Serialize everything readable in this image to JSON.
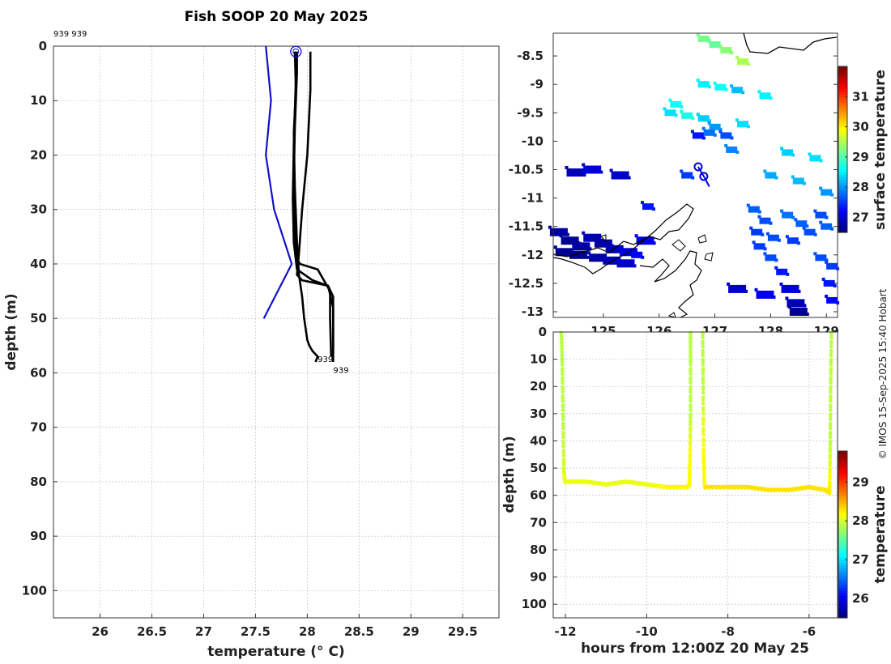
{
  "title": "Fish SOOP 20 May 2025",
  "credit": "© IMOS 15-Sep-2025 15:40 Hobart",
  "colors": {
    "profile": "#000000",
    "climatology": "#1010cc",
    "grid": "#bbbbbb",
    "track": "#0000dd",
    "coast": "#000000"
  },
  "chart_data": [
    {
      "id": "profile",
      "type": "line",
      "title": "Fish SOOP 20 May 2025",
      "xlabel": "temperature (° C)",
      "ylabel": "depth (m)",
      "xlim": [
        25.55,
        29.85
      ],
      "ylim": [
        105,
        0
      ],
      "xticks": [
        "26",
        "26.5",
        "27",
        "27.5",
        "28",
        "28.5",
        "29",
        "29.5"
      ],
      "xtick_values": [
        26,
        26.5,
        27,
        27.5,
        28,
        28.5,
        29,
        29.5
      ],
      "yticks": [
        "0",
        "10",
        "20",
        "30",
        "40",
        "50",
        "60",
        "70",
        "80",
        "90",
        "100"
      ],
      "ytick_values": [
        0,
        10,
        20,
        30,
        40,
        50,
        60,
        70,
        80,
        90,
        100
      ],
      "header_label": "939 939",
      "end_labels": [
        {
          "text": "939",
          "x": 28.1,
          "y": 58
        },
        {
          "text": "939",
          "x": 28.25,
          "y": 60
        }
      ],
      "start_marker": {
        "x": 27.89,
        "y": 1
      },
      "series": [
        {
          "name": "climatology",
          "x": [
            27.6,
            27.65,
            27.6,
            27.68,
            27.85,
            27.58
          ],
          "y": [
            0,
            10,
            20,
            30,
            40,
            50
          ]
        },
        {
          "name": "cast 1",
          "x": [
            27.9,
            27.9,
            27.88,
            27.87,
            27.88,
            27.9,
            27.93,
            28.1,
            28.22,
            28.22,
            28.23
          ],
          "y": [
            1,
            5,
            15,
            25,
            35,
            39,
            40,
            41,
            45,
            50,
            57
          ]
        },
        {
          "name": "cast 2",
          "x": [
            27.89,
            27.89,
            27.87,
            27.86,
            27.87,
            27.9,
            28.05,
            28.2,
            28.25,
            28.25,
            28.25
          ],
          "y": [
            1,
            6,
            18,
            28,
            36,
            41,
            43,
            44,
            46,
            52,
            58
          ]
        },
        {
          "name": "cast 3",
          "x": [
            28.03,
            28.03,
            28.0,
            27.95,
            27.92,
            27.9,
            27.95,
            28.2,
            28.25,
            28.25
          ],
          "y": [
            1,
            8,
            20,
            30,
            38,
            42,
            43,
            44,
            48,
            56
          ]
        },
        {
          "name": "cast 4",
          "x": [
            27.88,
            27.89,
            27.87,
            27.88,
            27.9,
            27.92,
            27.95,
            27.97,
            28.0,
            28.02,
            28.05,
            28.1,
            28.08
          ],
          "y": [
            1,
            8,
            16,
            26,
            36,
            42,
            46,
            50,
            54,
            55,
            56,
            57,
            58
          ]
        }
      ]
    },
    {
      "id": "map",
      "type": "heatmap",
      "xlim": [
        124.1,
        129.2
      ],
      "ylim": [
        -13.1,
        -8.1
      ],
      "xticks": [
        "125",
        "126",
        "127",
        "128",
        "129"
      ],
      "xtick_values": [
        125,
        126,
        127,
        128,
        129
      ],
      "yticks": [
        "-8.5",
        "-9",
        "-9.5",
        "-10",
        "-10.5",
        "-11",
        "-11.5",
        "-12",
        "-12.5",
        "-13"
      ],
      "ytick_values": [
        -8.5,
        -9,
        -9.5,
        -10,
        -10.5,
        -11,
        -11.5,
        -12,
        -12.5,
        -13
      ],
      "colorbar_label": "surface temperature",
      "colorbar_ticks": [
        "27",
        "28",
        "29",
        "30",
        "31"
      ],
      "colorbar_tick_values": [
        27,
        28,
        29,
        30,
        31
      ],
      "colorbar_range": [
        26.5,
        32
      ],
      "track": {
        "lon": [
          126.7,
          126.82,
          126.9
        ],
        "lat": [
          -10.45,
          -10.65,
          -10.8
        ]
      },
      "track_markers": {
        "lon": [
          126.7,
          126.8
        ],
        "lat": [
          -10.45,
          -10.62
        ]
      },
      "sst_cells": [
        {
          "lon": 126.8,
          "lat": -8.2,
          "t": 29.2
        },
        {
          "lon": 127.0,
          "lat": -8.3,
          "t": 29.1
        },
        {
          "lon": 127.2,
          "lat": -8.4,
          "t": 29.3
        },
        {
          "lon": 127.5,
          "lat": -8.6,
          "t": 29.5
        },
        {
          "lon": 126.8,
          "lat": -9.0,
          "t": 28.5
        },
        {
          "lon": 127.1,
          "lat": -9.05,
          "t": 28.6
        },
        {
          "lon": 127.4,
          "lat": -9.1,
          "t": 28.2
        },
        {
          "lon": 127.9,
          "lat": -9.2,
          "t": 28.5
        },
        {
          "lon": 126.3,
          "lat": -9.35,
          "t": 28.6
        },
        {
          "lon": 126.2,
          "lat": -9.5,
          "t": 28.4
        },
        {
          "lon": 126.5,
          "lat": -9.55,
          "t": 28.7
        },
        {
          "lon": 126.8,
          "lat": -9.6,
          "t": 28.3
        },
        {
          "lon": 127.0,
          "lat": -9.75,
          "t": 28.0
        },
        {
          "lon": 126.9,
          "lat": -9.85,
          "t": 27.8
        },
        {
          "lon": 127.2,
          "lat": -9.9,
          "t": 27.6
        },
        {
          "lon": 127.5,
          "lat": -9.7,
          "t": 28.4
        },
        {
          "lon": 126.7,
          "lat": -9.9,
          "t": 27.3
        },
        {
          "lon": 127.3,
          "lat": -10.15,
          "t": 27.9
        },
        {
          "lon": 128.3,
          "lat": -10.2,
          "t": 28.3
        },
        {
          "lon": 128.8,
          "lat": -10.3,
          "t": 28.4
        },
        {
          "lon": 128.0,
          "lat": -10.6,
          "t": 28.1
        },
        {
          "lon": 128.5,
          "lat": -10.7,
          "t": 28.2
        },
        {
          "lon": 129.0,
          "lat": -10.9,
          "t": 28.0
        },
        {
          "lon": 124.8,
          "lat": -10.5,
          "t": 27.0
        },
        {
          "lon": 125.3,
          "lat": -10.6,
          "t": 26.9
        },
        {
          "lon": 124.5,
          "lat": -10.55,
          "t": 26.8
        },
        {
          "lon": 126.5,
          "lat": -10.6,
          "t": 27.5
        },
        {
          "lon": 125.8,
          "lat": -11.15,
          "t": 27.3
        },
        {
          "lon": 124.2,
          "lat": -11.6,
          "t": 26.7
        },
        {
          "lon": 124.4,
          "lat": -11.75,
          "t": 26.6
        },
        {
          "lon": 124.6,
          "lat": -11.85,
          "t": 26.7
        },
        {
          "lon": 124.8,
          "lat": -11.7,
          "t": 26.8
        },
        {
          "lon": 125.0,
          "lat": -11.8,
          "t": 26.7
        },
        {
          "lon": 125.2,
          "lat": -11.9,
          "t": 26.8
        },
        {
          "lon": 125.45,
          "lat": -11.95,
          "t": 27.0
        },
        {
          "lon": 125.6,
          "lat": -12.0,
          "t": 27.2
        },
        {
          "lon": 124.3,
          "lat": -11.95,
          "t": 26.6
        },
        {
          "lon": 124.55,
          "lat": -12.0,
          "t": 26.6
        },
        {
          "lon": 124.9,
          "lat": -12.05,
          "t": 26.7
        },
        {
          "lon": 125.15,
          "lat": -12.1,
          "t": 26.8
        },
        {
          "lon": 125.4,
          "lat": -12.15,
          "t": 26.9
        },
        {
          "lon": 125.75,
          "lat": -11.75,
          "t": 27.1
        },
        {
          "lon": 127.7,
          "lat": -11.2,
          "t": 27.7
        },
        {
          "lon": 127.9,
          "lat": -11.4,
          "t": 27.6
        },
        {
          "lon": 127.75,
          "lat": -11.6,
          "t": 27.5
        },
        {
          "lon": 128.05,
          "lat": -11.7,
          "t": 27.6
        },
        {
          "lon": 127.8,
          "lat": -11.85,
          "t": 27.5
        },
        {
          "lon": 128.0,
          "lat": -12.05,
          "t": 27.6
        },
        {
          "lon": 128.3,
          "lat": -11.3,
          "t": 27.8
        },
        {
          "lon": 128.55,
          "lat": -11.45,
          "t": 27.7
        },
        {
          "lon": 128.7,
          "lat": -11.6,
          "t": 27.6
        },
        {
          "lon": 128.4,
          "lat": -11.75,
          "t": 27.5
        },
        {
          "lon": 128.2,
          "lat": -12.3,
          "t": 27.3
        },
        {
          "lon": 128.35,
          "lat": -12.6,
          "t": 27.0
        },
        {
          "lon": 128.45,
          "lat": -12.85,
          "t": 26.8
        },
        {
          "lon": 128.5,
          "lat": -13.0,
          "t": 26.6
        },
        {
          "lon": 128.9,
          "lat": -11.3,
          "t": 27.6
        },
        {
          "lon": 129.0,
          "lat": -11.5,
          "t": 27.7
        },
        {
          "lon": 128.9,
          "lat": -12.05,
          "t": 27.6
        },
        {
          "lon": 129.1,
          "lat": -12.2,
          "t": 27.5
        },
        {
          "lon": 129.05,
          "lat": -12.5,
          "t": 27.3
        },
        {
          "lon": 129.1,
          "lat": -12.8,
          "t": 27.2
        },
        {
          "lon": 127.4,
          "lat": -12.6,
          "t": 26.9
        },
        {
          "lon": 127.9,
          "lat": -12.7,
          "t": 27.1
        }
      ]
    },
    {
      "id": "section",
      "type": "scatter",
      "xlabel": "hours from 12:00Z 20 May 25",
      "ylabel": "depth (m)",
      "xlim": [
        -12.3,
        -5.3
      ],
      "ylim": [
        105,
        0
      ],
      "xticks": [
        "-12",
        "-10",
        "-8",
        "-6"
      ],
      "xtick_values": [
        -12,
        -10,
        -8,
        -6
      ],
      "yticks": [
        "0",
        "10",
        "20",
        "30",
        "40",
        "50",
        "60",
        "70",
        "80",
        "90",
        "100"
      ],
      "ytick_values": [
        0,
        10,
        20,
        30,
        40,
        50,
        60,
        70,
        80,
        90,
        100
      ],
      "colorbar_label": "temperature",
      "colorbar_ticks": [
        "26",
        "27",
        "28",
        "29"
      ],
      "colorbar_tick_values": [
        26,
        27,
        28,
        29
      ],
      "colorbar_range": [
        25.5,
        29.8
      ],
      "casts": [
        {
          "t": [
            -12.1,
            -12.08,
            -12.06,
            -12.04,
            -12.02,
            -12.0
          ],
          "d": [
            0,
            10,
            30,
            50,
            54,
            55
          ],
          "temp": [
            27.9,
            27.9,
            27.9,
            28.0,
            28.1,
            28.1
          ]
        },
        {
          "t": [
            -12.0,
            -11.5,
            -11.0,
            -10.5,
            -10.0,
            -9.5,
            -9.0,
            -8.95
          ],
          "d": [
            55,
            55,
            56,
            55,
            56,
            57,
            57,
            56
          ],
          "temp": [
            28.1,
            28.1,
            28.1,
            28.1,
            28.1,
            28.2,
            28.2,
            28.2
          ]
        },
        {
          "t": [
            -8.95,
            -8.93,
            -8.92,
            -8.92,
            -8.92
          ],
          "d": [
            56,
            45,
            30,
            10,
            0
          ],
          "temp": [
            28.2,
            28.2,
            27.9,
            27.9,
            27.9
          ]
        },
        {
          "t": [
            -8.62,
            -8.61,
            -8.6,
            -8.58,
            -8.56
          ],
          "d": [
            0,
            20,
            43,
            55,
            57
          ],
          "temp": [
            27.9,
            27.9,
            28.2,
            28.2,
            28.2
          ]
        },
        {
          "t": [
            -8.56,
            -8.0,
            -7.5,
            -7.0,
            -6.5,
            -6.0,
            -5.6,
            -5.5
          ],
          "d": [
            57,
            57,
            57,
            58,
            58,
            57,
            58,
            59
          ],
          "temp": [
            28.3,
            28.3,
            28.3,
            28.3,
            28.3,
            28.3,
            28.3,
            28.3
          ]
        },
        {
          "t": [
            -5.5,
            -5.49,
            -5.48,
            -5.47,
            -5.45
          ],
          "d": [
            59,
            55,
            40,
            20,
            0
          ],
          "temp": [
            28.3,
            28.2,
            27.9,
            27.9,
            27.9
          ]
        }
      ]
    }
  ]
}
